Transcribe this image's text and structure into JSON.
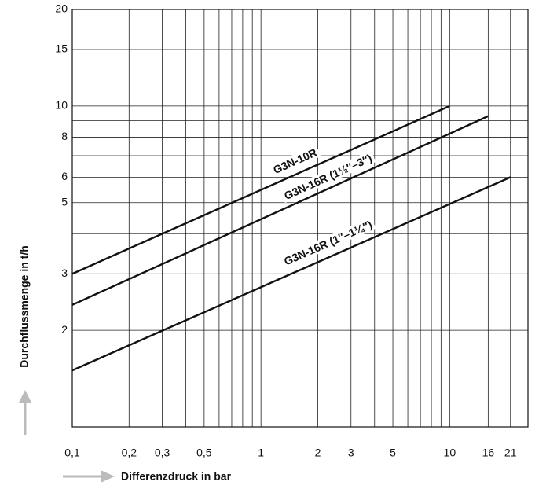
{
  "chart_data": {
    "type": "line",
    "log_x": true,
    "log_y": true,
    "grid": true,
    "x_label": "Differenzdruck in bar",
    "y_label": "Durchflussmenge in t/h",
    "xlim": [
      0.1,
      26
    ],
    "ylim": [
      1,
      20
    ],
    "xticks": [
      {
        "value": 0.1,
        "label": "0,1"
      },
      {
        "value": 0.2,
        "label": "0,2"
      },
      {
        "value": 0.3,
        "label": "0,3"
      },
      {
        "value": 0.5,
        "label": "0,5"
      },
      1,
      2,
      3,
      5,
      10,
      16,
      21
    ],
    "x_minor_ticks": [
      0.4,
      0.6,
      0.7,
      0.8,
      0.9,
      4,
      6,
      7,
      8,
      9
    ],
    "yticks": [
      2,
      3,
      5,
      6,
      8,
      10,
      15,
      20
    ],
    "y_minor_ticks": [
      4,
      7,
      9
    ],
    "color": "#111111",
    "series": [
      {
        "name": "G3N-10R",
        "x": [
          0.1,
          10
        ],
        "values": [
          3,
          10
        ]
      },
      {
        "name": "G3N-16R (1½″–3″)",
        "x": [
          0.1,
          16
        ],
        "values": [
          2.4,
          9.3
        ]
      },
      {
        "name": "G3N-16R (1″–1¼″)",
        "x": [
          0.1,
          21
        ],
        "values": [
          1.5,
          6
        ]
      }
    ]
  }
}
